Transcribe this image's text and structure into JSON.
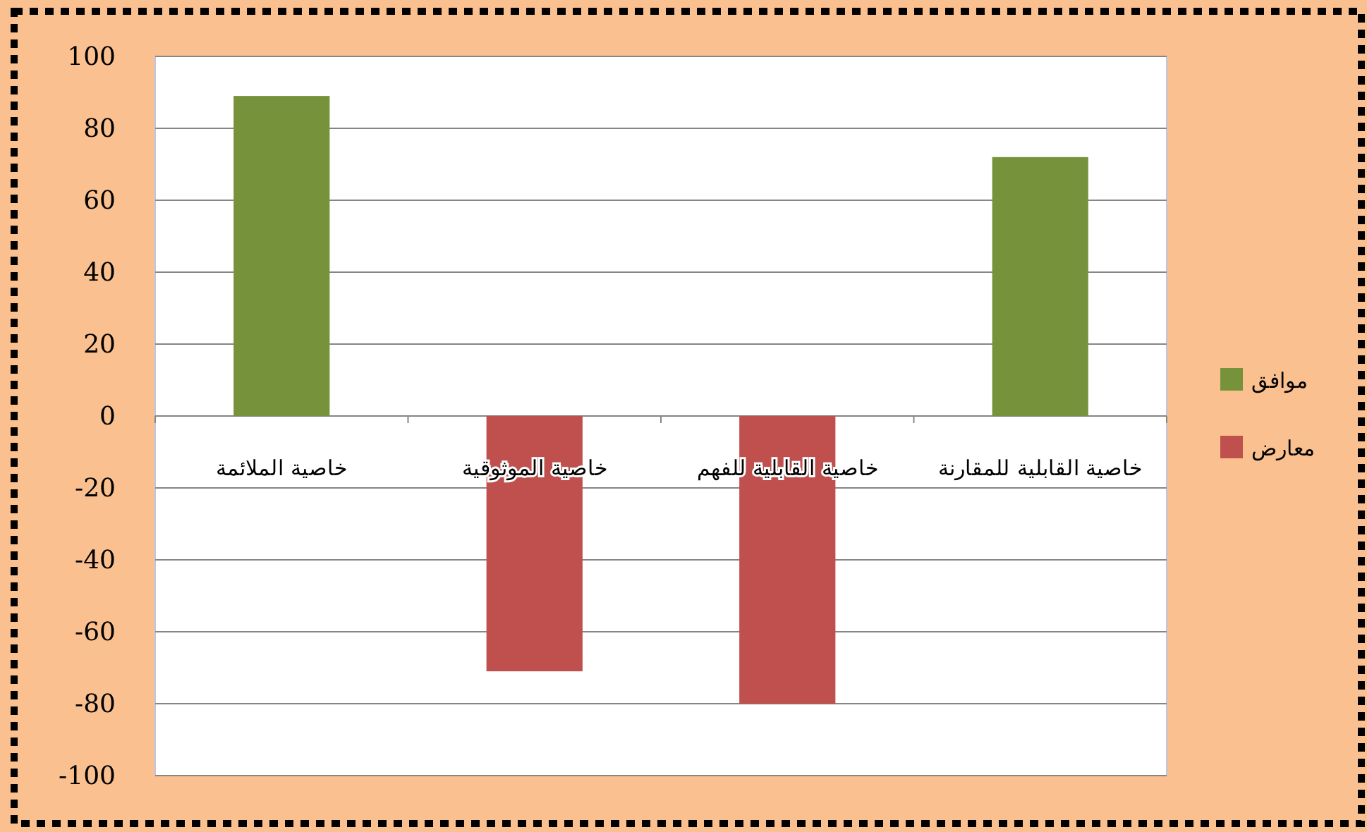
{
  "chart_data": {
    "type": "bar",
    "categories": [
      "خاصية الملائمة",
      "خاصية الموثوقية",
      "خاصية القابلية للفهم",
      "خاصية القابلية للمقارنة"
    ],
    "series": [
      {
        "name": "موافق",
        "color": "#76933c",
        "values": [
          89,
          null,
          null,
          72
        ]
      },
      {
        "name": "معارض",
        "color": "#c0504d",
        "values": [
          null,
          -71,
          -80,
          null
        ]
      }
    ],
    "ylim": [
      -100,
      100
    ],
    "yticks": [
      -100,
      -80,
      -60,
      -40,
      -20,
      0,
      20,
      40,
      60,
      80,
      100
    ],
    "grid": "y",
    "legend": "right"
  }
}
